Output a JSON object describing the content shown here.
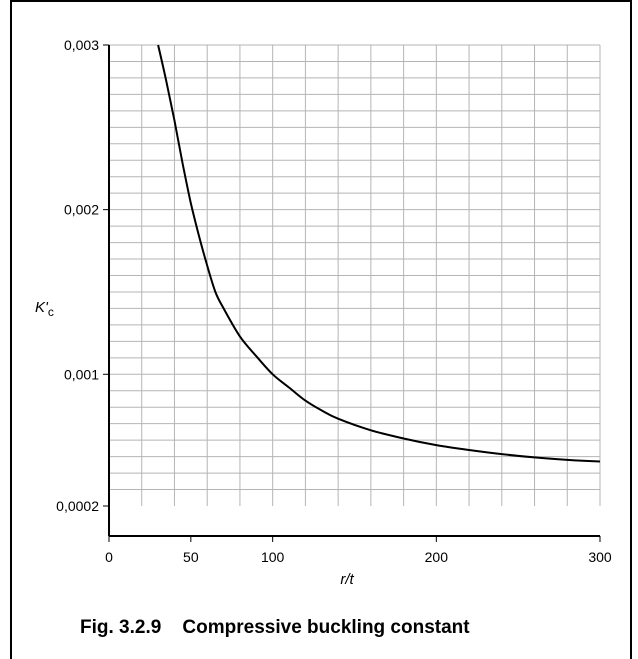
{
  "chart_data": {
    "type": "line",
    "title": "",
    "caption": "Fig. 3.2.9    Compressive buckling constant",
    "xlabel": "r/t",
    "ylabel_main": "K'",
    "ylabel_sub": "c",
    "xlim": [
      0,
      300
    ],
    "ylim": [
      0.0002,
      0.003
    ],
    "grid": true,
    "x_ticks": [
      {
        "value": 0,
        "label": "0"
      },
      {
        "value": 50,
        "label": "50"
      },
      {
        "value": 100,
        "label": "100"
      },
      {
        "value": 200,
        "label": "200"
      },
      {
        "value": 300,
        "label": "300"
      }
    ],
    "y_ticks": [
      {
        "value": 0.003,
        "label": "0,003"
      },
      {
        "value": 0.002,
        "label": "0,002"
      },
      {
        "value": 0.001,
        "label": "0,001"
      },
      {
        "value": 0.0002,
        "label": "0,0002"
      }
    ],
    "series": [
      {
        "name": "",
        "x": [
          30,
          35,
          40,
          45,
          50,
          55,
          60,
          65,
          70,
          80,
          90,
          100,
          110,
          120,
          130,
          140,
          160,
          180,
          200,
          220,
          240,
          260,
          280,
          300
        ],
        "y": [
          0.003,
          0.00278,
          0.00254,
          0.00228,
          0.00204,
          0.00184,
          0.00166,
          0.0015,
          0.0014,
          0.00123,
          0.00111,
          0.001,
          0.00092,
          0.00084,
          0.00078,
          0.00073,
          0.00066,
          0.00061,
          0.00057,
          0.00054,
          0.000515,
          0.000495,
          0.00048,
          0.00047
        ]
      }
    ]
  }
}
